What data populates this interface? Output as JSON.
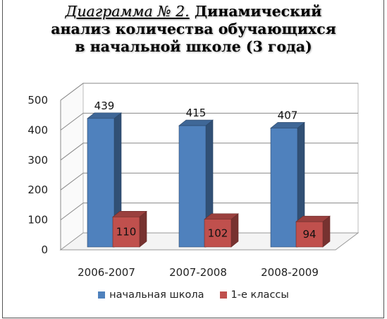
{
  "title": {
    "prefix": "Диаграмма № 2.",
    "line1_rest": "Динамический",
    "line2": "анализ количества обучающихся",
    "line3": "в начальной школе  (3 года)"
  },
  "chart_data": {
    "type": "bar",
    "categories": [
      "2006-2007",
      "2007-2008",
      "2008-2009"
    ],
    "series": [
      {
        "name": "начальная школа",
        "values": [
          439,
          415,
          407
        ],
        "color": "#4f81bd"
      },
      {
        "name": "1-е классы",
        "values": [
          110,
          102,
          94
        ],
        "color": "#c0504d"
      }
    ],
    "ylim": [
      0,
      500
    ],
    "yticks": [
      0,
      100,
      200,
      300,
      400,
      500
    ],
    "grid": true,
    "legend_position": "bottom",
    "style": "3d-clustered-column"
  }
}
